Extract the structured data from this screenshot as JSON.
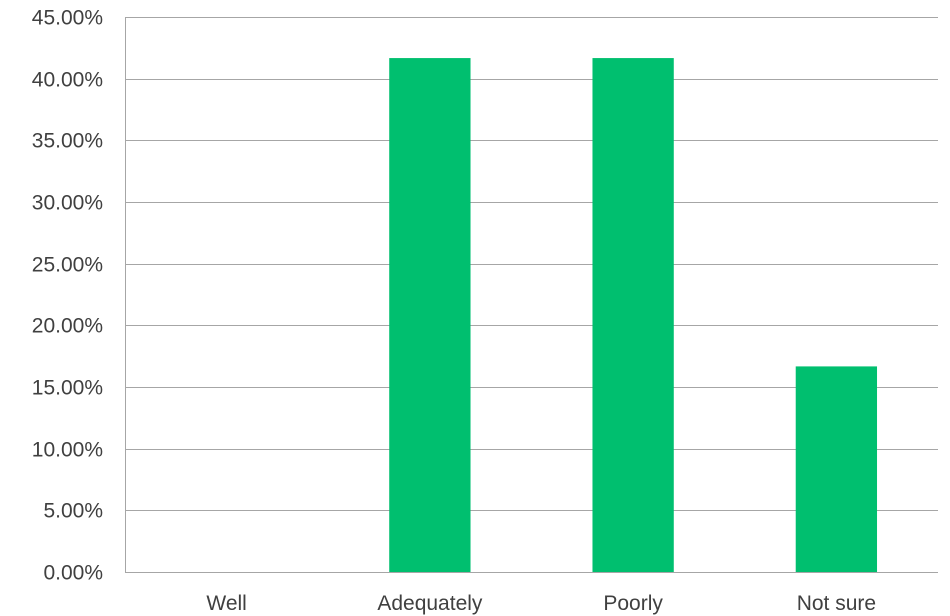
{
  "chart_data": {
    "type": "bar",
    "title": "",
    "xlabel": "",
    "ylabel": "",
    "categories": [
      "Well",
      "Adequately",
      "Poorly",
      "Not sure"
    ],
    "values": [
      0.0,
      41.67,
      41.67,
      16.67
    ],
    "ylim": [
      0,
      45
    ],
    "ytick_step": 5,
    "ytick_labels": [
      "0.00%",
      "5.00%",
      "10.00%",
      "15.00%",
      "20.00%",
      "25.00%",
      "30.00%",
      "35.00%",
      "40.00%",
      "45.00%"
    ],
    "grid": true,
    "legend": "none",
    "bar_color": "#00bf6f",
    "grid_color": "#a6a6a6",
    "text_color": "#404040"
  }
}
